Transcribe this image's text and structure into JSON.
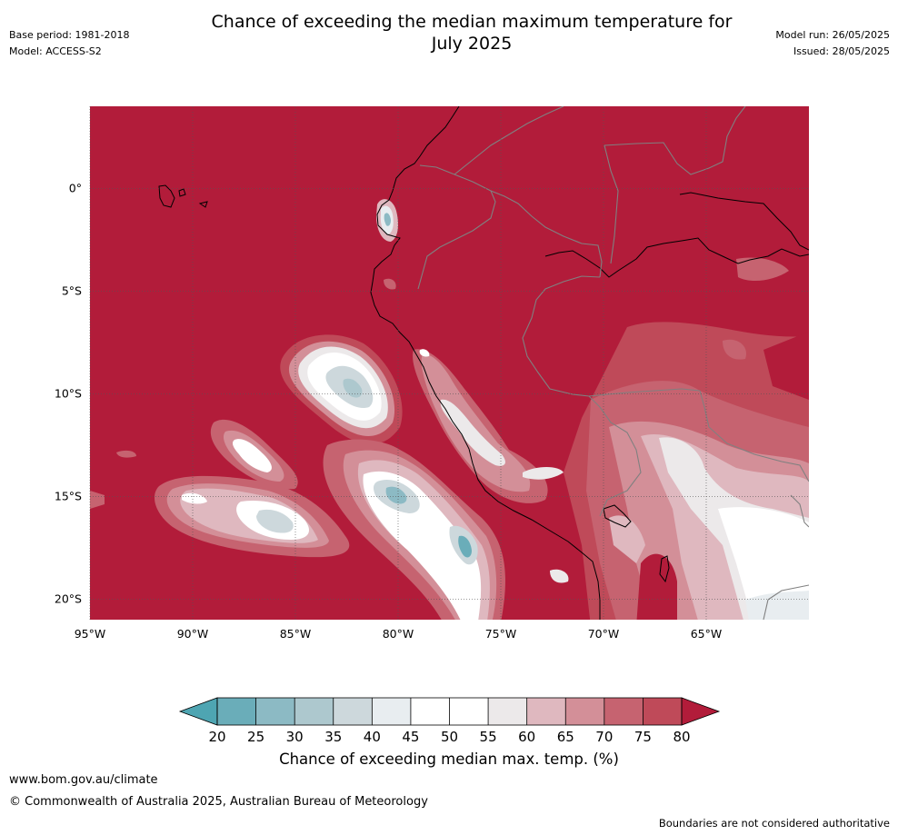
{
  "header": {
    "title_line1": "Chance of exceeding the median maximum temperature for",
    "title_line2": "July 2025",
    "base_period": "Base period: 1981-2018",
    "model": "Model: ACCESS-S2",
    "model_run": "Model run: 26/05/2025",
    "issued": "Issued: 28/05/2025"
  },
  "map": {
    "lon_range": [
      -95,
      -60
    ],
    "lat_range": [
      -21,
      4
    ],
    "lat_ticks": [
      {
        "value": 0,
        "label": "0°"
      },
      {
        "value": -5,
        "label": "5°S"
      },
      {
        "value": -10,
        "label": "10°S"
      },
      {
        "value": -15,
        "label": "15°S"
      },
      {
        "value": -20,
        "label": "20°S"
      }
    ],
    "lon_ticks": [
      {
        "value": -95,
        "label": "95°W"
      },
      {
        "value": -90,
        "label": "90°W"
      },
      {
        "value": -85,
        "label": "85°W"
      },
      {
        "value": -80,
        "label": "80°W"
      },
      {
        "value": -75,
        "label": "75°W"
      },
      {
        "value": -70,
        "label": "70°W"
      },
      {
        "value": -65,
        "label": "65°W"
      }
    ],
    "background_color": "#b21c3a",
    "gridlines": "dotted"
  },
  "colorbar": {
    "ticks": [
      "20",
      "25",
      "30",
      "35",
      "40",
      "45",
      "50",
      "55",
      "60",
      "65",
      "70",
      "75",
      "80"
    ],
    "colors": [
      "#6aadb9",
      "#8cbac4",
      "#adc8ce",
      "#cdd8dc",
      "#e8edf0",
      "#ffffff",
      "#ffffff",
      "#ece9ea",
      "#dfb8bf",
      "#d38f98",
      "#c66370",
      "#bf4a59"
    ],
    "under_color": "#4ea5b2",
    "over_color": "#b21c3a",
    "label": "Chance of exceeding median max. temp. (%)"
  },
  "footer": {
    "link": "www.bom.gov.au/climate",
    "copyright": "© Commonwealth of Australia 2025, Australian Bureau of Meteorology",
    "disclaimer": "Boundaries are not considered authoritative"
  }
}
